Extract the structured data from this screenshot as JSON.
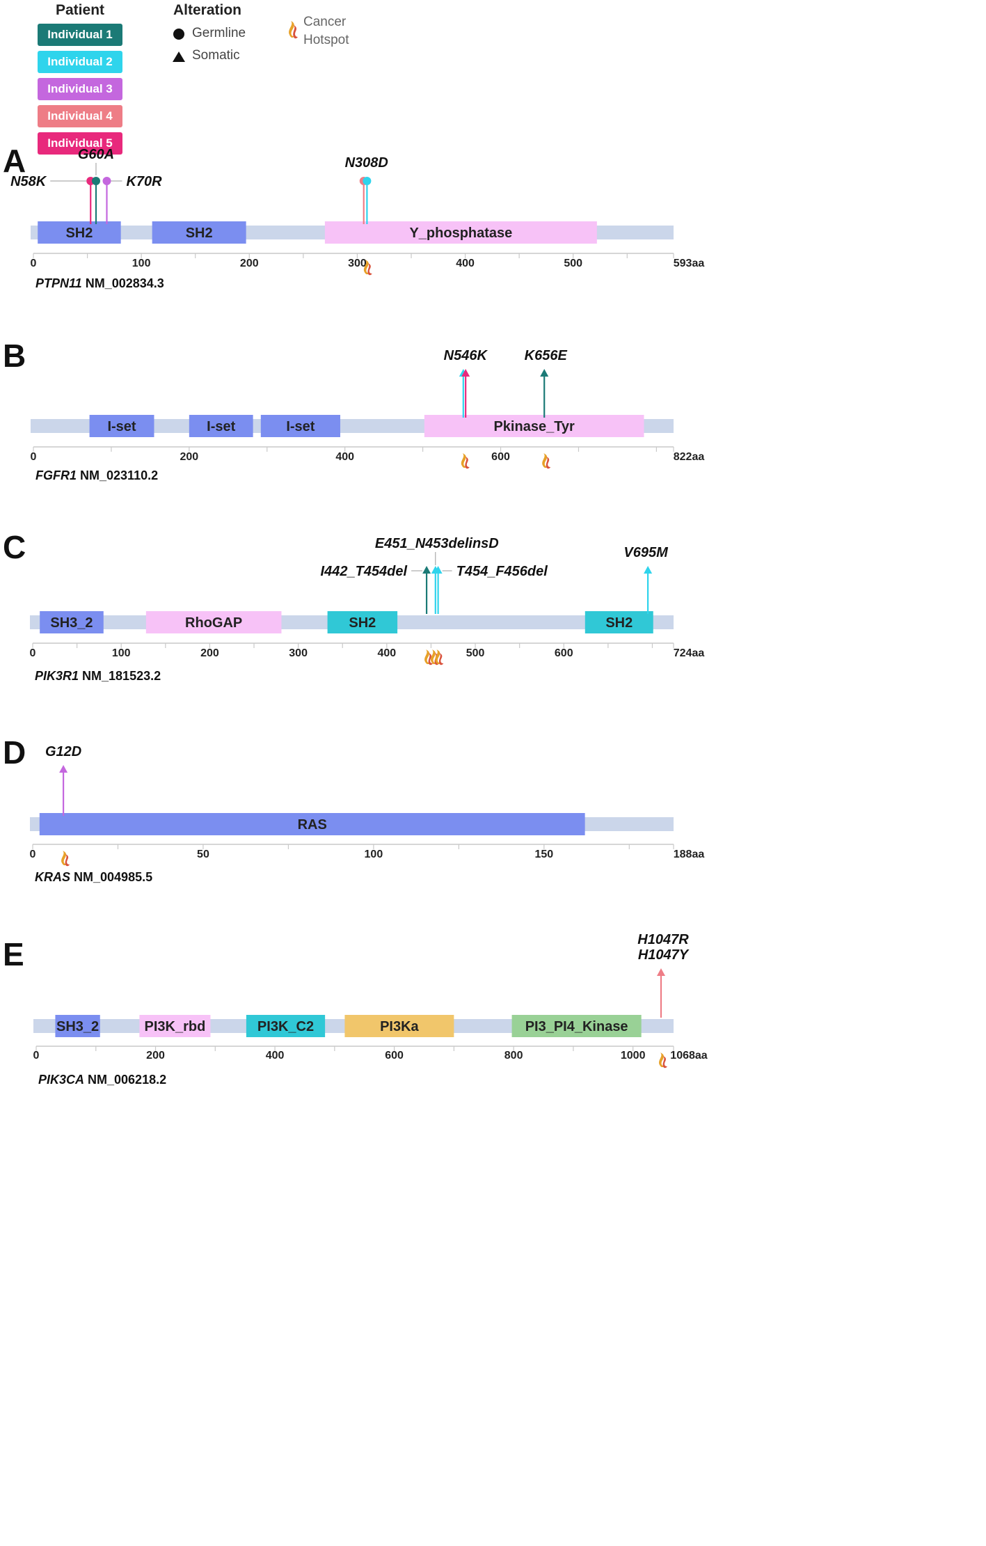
{
  "legend": {
    "patient_title": "Patient",
    "patients": [
      {
        "label": "Individual 1",
        "color": "#1B7A76"
      },
      {
        "label": "Individual 2",
        "color": "#2FD4EC"
      },
      {
        "label": "Individual 3",
        "color": "#C467DE"
      },
      {
        "label": "Individual 4",
        "color": "#EE7D86"
      },
      {
        "label": "Individual 5",
        "color": "#E8297C"
      }
    ],
    "alteration_title": "Alteration",
    "germline_label": "Germline",
    "somatic_label": "Somatic",
    "hotspot_line1": "Cancer",
    "hotspot_line2": "Hotspot"
  },
  "colors": {
    "backbone": "#CBD6EA",
    "axis": "#C9C9C9",
    "domains": {
      "SH2_blue": "#7B8EF0",
      "pink": "#F7C2F7",
      "teal": "#30C8D6",
      "orange": "#F1C66B",
      "green": "#99D196",
      "RAS": "#7B8EF0"
    }
  },
  "chart_data": [
    {
      "type": "lollipop",
      "panel": "A",
      "gene": "PTPN11",
      "transcript": "NM_002834.3",
      "length": 593,
      "length_label": "593aa",
      "ticks": [
        0,
        100,
        200,
        300,
        400,
        500
      ],
      "domains": [
        {
          "name": "SH2",
          "start": 4,
          "end": 81,
          "color": "#7B8EF0"
        },
        {
          "name": "SH2",
          "start": 110,
          "end": 197,
          "color": "#7B8EF0"
        },
        {
          "name": "Y_phosphatase",
          "start": 270,
          "end": 522,
          "color": "#F7C2F7"
        }
      ],
      "hotspots": [
        308
      ],
      "mutations": [
        {
          "label": "N58K",
          "pos": 53,
          "type": "germline",
          "patient": "Individual 5"
        },
        {
          "label": "G60A",
          "pos": 58,
          "type": "germline",
          "patient": "Individual 1"
        },
        {
          "label": "K70R",
          "pos": 68,
          "type": "germline",
          "patient": "Individual 3"
        },
        {
          "label": "N308D",
          "pos": 306,
          "type": "germline",
          "patient": "Individual 4"
        },
        {
          "label": "",
          "pos": 309,
          "type": "germline",
          "patient": "Individual 2"
        }
      ]
    },
    {
      "type": "lollipop",
      "panel": "B",
      "gene": "FGFR1",
      "transcript": "NM_023110.2",
      "length": 822,
      "length_label": "822aa",
      "ticks": [
        0,
        200,
        400,
        600
      ],
      "domains": [
        {
          "name": "I-set",
          "start": 72,
          "end": 155,
          "color": "#7B8EF0"
        },
        {
          "name": "I-set",
          "start": 200,
          "end": 282,
          "color": "#7B8EF0"
        },
        {
          "name": "I-set",
          "start": 292,
          "end": 394,
          "color": "#7B8EF0"
        },
        {
          "name": "Pkinase_Tyr",
          "start": 502,
          "end": 784,
          "color": "#F7C2F7"
        }
      ],
      "hotspots": [
        552,
        656
      ],
      "mutations": [
        {
          "label": "N546K",
          "pos": 552,
          "type": "somatic",
          "patient": "Individual 2"
        },
        {
          "label": "",
          "pos": 555,
          "type": "somatic",
          "patient": "Individual 5"
        },
        {
          "label": "K656E",
          "pos": 656,
          "type": "somatic",
          "patient": "Individual 1"
        }
      ]
    },
    {
      "type": "lollipop",
      "panel": "C",
      "gene": "PIK3R1",
      "transcript": "NM_181523.2",
      "length": 724,
      "length_label": "724aa",
      "ticks": [
        0,
        100,
        200,
        300,
        400,
        500,
        600
      ],
      "domains": [
        {
          "name": "SH3_2",
          "start": 8,
          "end": 80,
          "color": "#7B8EF0"
        },
        {
          "name": "RhoGAP",
          "start": 128,
          "end": 281,
          "color": "#F7C2F7"
        },
        {
          "name": "SH2",
          "start": 333,
          "end": 412,
          "color": "#30C8D6"
        },
        {
          "name": "SH2",
          "start": 624,
          "end": 701,
          "color": "#30C8D6"
        }
      ],
      "hotspots": [
        445,
        452,
        457
      ],
      "mutations": [
        {
          "label": "I442_T454del",
          "pos": 445,
          "type": "somatic",
          "patient": "Individual 1"
        },
        {
          "label": "E451_N453delinsD",
          "pos": 455,
          "type": "somatic",
          "patient": "Individual 2"
        },
        {
          "label": "T454_F456del",
          "pos": 458,
          "type": "somatic",
          "patient": "Individual 2"
        },
        {
          "label": "V695M",
          "pos": 695,
          "type": "somatic",
          "patient": "Individual 2"
        }
      ]
    },
    {
      "type": "lollipop",
      "panel": "D",
      "gene": "KRAS",
      "transcript": "NM_004985.5",
      "length": 188,
      "length_label": "188aa",
      "ticks": [
        0,
        50,
        100,
        150
      ],
      "domains": [
        {
          "name": "RAS",
          "start": 2,
          "end": 162,
          "color": "#7B8EF0"
        }
      ],
      "hotspots": [
        9
      ],
      "mutations": [
        {
          "label": "G12D",
          "pos": 9,
          "type": "somatic",
          "patient": "Individual 3"
        }
      ]
    },
    {
      "type": "lollipop",
      "panel": "E",
      "gene": "PIK3CA",
      "transcript": "NM_006218.2",
      "length": 1068,
      "length_label": "1068aa",
      "ticks": [
        0,
        200,
        400,
        600,
        800,
        1000
      ],
      "domains": [
        {
          "name": "SH3_2",
          "start": 32,
          "end": 107,
          "color": "#7B8EF0"
        },
        {
          "name": "PI3K_rbd",
          "start": 173,
          "end": 292,
          "color": "#F7C2F7"
        },
        {
          "name": "PI3K_C2",
          "start": 352,
          "end": 484,
          "color": "#30C8D6"
        },
        {
          "name": "PI3Ka",
          "start": 517,
          "end": 700,
          "color": "#F1C66B"
        },
        {
          "name": "PI3_PI4_Kinase",
          "start": 797,
          "end": 1014,
          "color": "#99D196"
        }
      ],
      "hotspots": [
        1047
      ],
      "mutations": [
        {
          "label": "H1047R",
          "label2": "H1047Y",
          "pos": 1047,
          "type": "somatic",
          "patient": "Individual 4"
        }
      ]
    }
  ]
}
